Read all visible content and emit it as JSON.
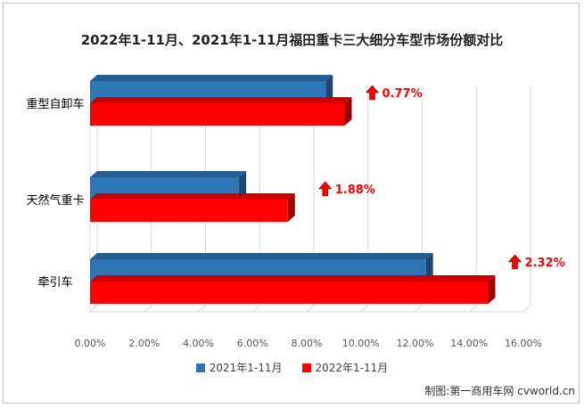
{
  "chart_data": {
    "type": "bar",
    "orientation": "horizontal",
    "title": "2022年1-11月、2021年1-11月福田重卡三大细分车型市场份额对比",
    "categories": [
      "重型自卸车",
      "天然气重卡",
      "牵引车"
    ],
    "series": [
      {
        "name": "2021年1-11月",
        "color": "#2E75B6",
        "values": [
          8.7,
          5.5,
          12.4
        ]
      },
      {
        "name": "2022年1-11月",
        "color": "#FF0000",
        "values": [
          9.4,
          7.3,
          14.7
        ]
      }
    ],
    "annotations": [
      "0.77%",
      "1.88%",
      "2.32%"
    ],
    "annotation_color": "#FF0000",
    "annotation_icon": "up-arrow-icon",
    "xlim": [
      0,
      16
    ],
    "xticks": [
      "0.00%",
      "2.00%",
      "4.00%",
      "6.00%",
      "8.00%",
      "10.00%",
      "12.00%",
      "14.00%",
      "16.00%"
    ],
    "grid": true,
    "legend_position": "bottom"
  },
  "source_note": "制图:第一商用车网 cvworld.cn"
}
